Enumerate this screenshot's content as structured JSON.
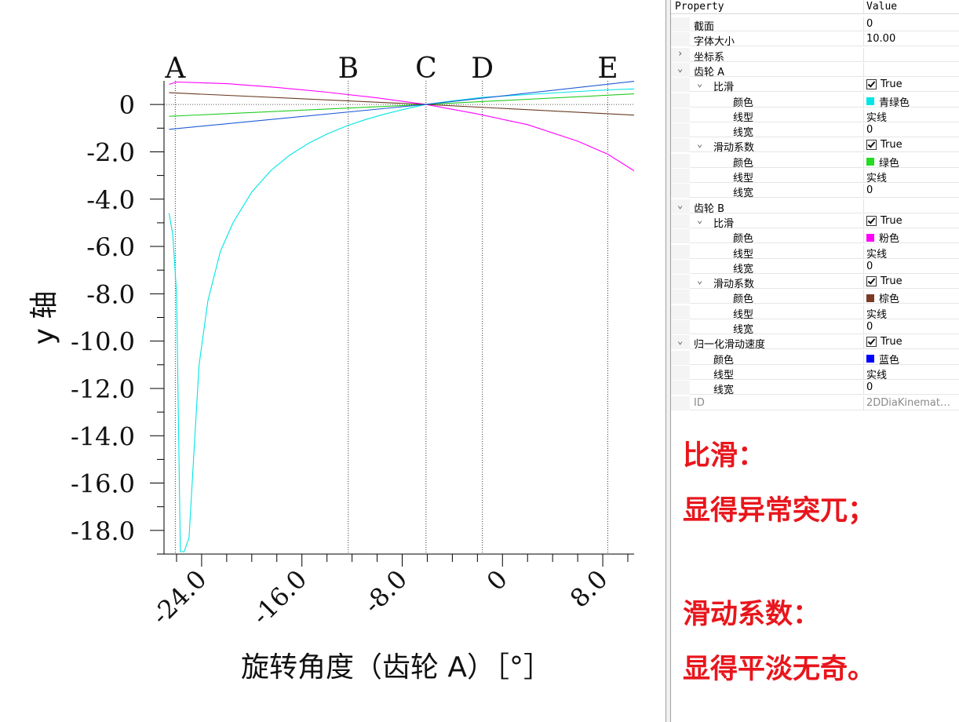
{
  "chart_data": {
    "type": "line",
    "xlabel": "旋转角度（齿轮 A）［°］",
    "ylabel": "y 轴",
    "xlim": [
      -27,
      10.5
    ],
    "ylim": [
      -19,
      1
    ],
    "x_ticks": [
      -24.0,
      -16.0,
      -8.0,
      0,
      8.0
    ],
    "x_tick_labels": [
      "-24.0",
      "-16.0",
      "-8.0",
      "0",
      "8.0"
    ],
    "y_ticks": [
      0,
      -2,
      -4,
      -6,
      -8,
      -10,
      -12,
      -14,
      -16,
      -18
    ],
    "y_tick_labels": [
      "0",
      "-2.0",
      "-4.0",
      "-6.0",
      "-8.0",
      "-10.0",
      "-12.0",
      "-14.0",
      "-16.0",
      "-18.0"
    ],
    "markers": [
      {
        "label": "A",
        "x": -26.1
      },
      {
        "label": "B",
        "x": -12.3
      },
      {
        "label": "C",
        "x": -6.1
      },
      {
        "label": "D",
        "x": -1.6
      },
      {
        "label": "E",
        "x": 8.4
      }
    ],
    "series": [
      {
        "color": "#00e5e5",
        "x": [
          -26.6,
          -26.3,
          -26.0,
          -25.7,
          -25.4,
          -25.0,
          -24.6,
          -24.2,
          -23.5,
          -22.5,
          -21.5,
          -20.0,
          -18.5,
          -17.0,
          -15.5,
          -14.0,
          -12.5,
          -11.0,
          -9.5,
          -8.0,
          -7.0,
          -6.1,
          -4.0,
          -1.6,
          2.0,
          5.0,
          8.4,
          10.5
        ],
        "y": [
          -4.6,
          -5.5,
          -8.0,
          -18.9,
          -18.9,
          -18.3,
          -14.6,
          -11.0,
          -8.3,
          -6.2,
          -5.0,
          -3.7,
          -2.8,
          -2.15,
          -1.65,
          -1.25,
          -0.92,
          -0.65,
          -0.42,
          -0.22,
          -0.1,
          0,
          0.15,
          0.3,
          0.42,
          0.52,
          0.62,
          0.66
        ]
      },
      {
        "color": "#22cc22",
        "x": [
          -26.6,
          -6.1,
          10.5
        ],
        "y": [
          -0.5,
          0,
          0.45
        ]
      },
      {
        "color": "#ff00ff",
        "x": [
          -26.6,
          -26.0,
          -22.0,
          -18.0,
          -14.0,
          -10.0,
          -6.1,
          -2.0,
          2.0,
          6.0,
          8.4,
          10.5
        ],
        "y": [
          0.85,
          0.95,
          0.88,
          0.72,
          0.52,
          0.28,
          0,
          -0.4,
          -0.85,
          -1.55,
          -2.1,
          -2.8
        ]
      },
      {
        "color": "#6b3a22",
        "x": [
          -26.6,
          -6.1,
          10.5
        ],
        "y": [
          0.5,
          0,
          -0.45
        ]
      },
      {
        "color": "#1f5bd6",
        "x": [
          -26.6,
          -6.1,
          10.5
        ],
        "y": [
          -1.05,
          0,
          0.98
        ]
      }
    ]
  },
  "panel": {
    "col_property": "Property",
    "col_value": "Value",
    "rows": [
      {
        "name": "截面",
        "value": "0"
      },
      {
        "name": "字体大小",
        "value": "10.00"
      },
      {
        "name": "坐标系",
        "value": ""
      },
      {
        "name": "齿轮 A",
        "value": ""
      },
      {
        "name": "比滑",
        "value": "True"
      },
      {
        "name": "颜色",
        "value": "青绿色",
        "color": "#00e5e5"
      },
      {
        "name": "线型",
        "value": "实线"
      },
      {
        "name": "线宽",
        "value": "0"
      },
      {
        "name": "滑动系数",
        "value": "True"
      },
      {
        "name": "颜色",
        "value": "绿色",
        "color": "#22dd22"
      },
      {
        "name": "线型",
        "value": "实线"
      },
      {
        "name": "线宽",
        "value": "0"
      },
      {
        "name": "齿轮 B",
        "value": ""
      },
      {
        "name": "比滑",
        "value": "True"
      },
      {
        "name": "颜色",
        "value": "粉色",
        "color": "#ff00ff"
      },
      {
        "name": "线型",
        "value": "实线"
      },
      {
        "name": "线宽",
        "value": "0"
      },
      {
        "name": "滑动系数",
        "value": "True"
      },
      {
        "name": "颜色",
        "value": "棕色",
        "color": "#7a3a26"
      },
      {
        "name": "线型",
        "value": "实线"
      },
      {
        "name": "线宽",
        "value": "0"
      },
      {
        "name": "归一化滑动速度",
        "value": "True"
      },
      {
        "name": "颜色",
        "value": "蓝色",
        "color": "#0000ff"
      },
      {
        "name": "线型",
        "value": "实线"
      },
      {
        "name": "线宽",
        "value": "0"
      },
      {
        "name": "ID",
        "value": "2DDiaKinemat…"
      }
    ]
  },
  "annotation": {
    "line1": "比滑：",
    "line2": "显得异常突兀；",
    "line3": "滑动系数：",
    "line4": "显得平淡无奇。"
  }
}
